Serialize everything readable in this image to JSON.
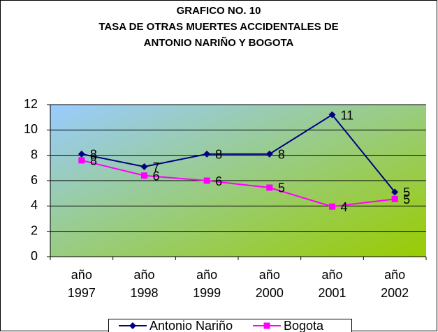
{
  "chart_data": {
    "type": "line",
    "title": [
      "GRAFICO NO. 10",
      "TASA DE OTRAS MUERTES ACCIDENTALES DE",
      "ANTONIO NARIÑO Y BOGOTA"
    ],
    "categories": [
      "año 1997",
      "año 1998",
      "año 1999",
      "año 2000",
      "año 2001",
      "año 2002"
    ],
    "series": [
      {
        "name": "Antonio Nariño",
        "color": "#000080",
        "marker": "diamond",
        "values": [
          8.1,
          7.1,
          8.1,
          8.1,
          11.2,
          5.1
        ],
        "value_labels": [
          "8",
          "7",
          "8",
          "8",
          "11",
          "5"
        ]
      },
      {
        "name": "Bogota",
        "color": "#ff00ff",
        "marker": "square",
        "values": [
          7.6,
          6.4,
          6.0,
          5.45,
          3.95,
          4.55
        ],
        "value_labels": [
          "8",
          "6",
          "6",
          "5",
          "4",
          "5"
        ]
      }
    ],
    "ylim": [
      0,
      12
    ],
    "yticks": [
      0,
      2,
      4,
      6,
      8,
      10,
      12
    ],
    "grid": true,
    "legend": "bottom"
  }
}
